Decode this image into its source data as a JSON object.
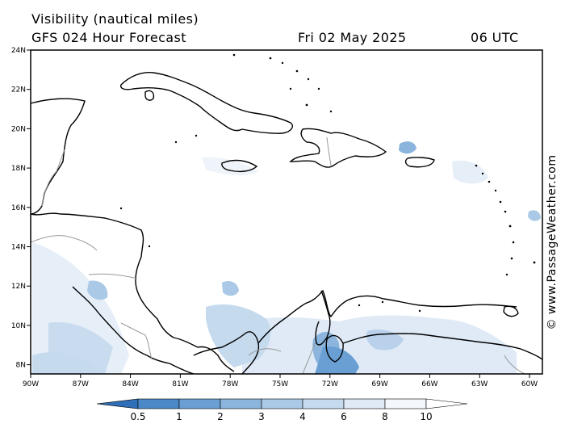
{
  "header": {
    "title_line1": "Visibility (nautical miles)",
    "title_line2": "GFS 024 Hour Forecast",
    "date": "Fri 02 May 2025",
    "time": "06 UTC"
  },
  "map": {
    "lon_labels": [
      "90W",
      "87W",
      "84W",
      "81W",
      "78W",
      "75W",
      "72W",
      "69W",
      "66W",
      "63W",
      "60W"
    ],
    "lat_labels": [
      "24N",
      "22N",
      "20N",
      "18N",
      "16N",
      "14N",
      "12N",
      "10N",
      "8N"
    ],
    "land_color": "#000000",
    "border_color": "#999999"
  },
  "colorbar": {
    "labels": [
      "0.5",
      "1",
      "2",
      "3",
      "4",
      "6",
      "8",
      "10"
    ],
    "colors": [
      "#2f6fb8",
      "#4a88c8",
      "#6a9fd3",
      "#8bb5dd",
      "#a9c9e6",
      "#c6daee",
      "#dfeaf6",
      "#f4f8fc",
      "#ffffff"
    ]
  },
  "credit": "© www.PassageWeather.com"
}
